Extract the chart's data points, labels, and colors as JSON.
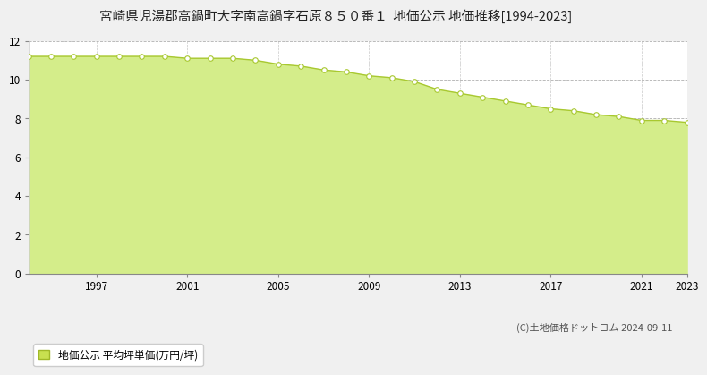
{
  "title": "宮崎県児湯郡高鍋町大字南高鍋字石原８５０番１  地価公示 地価推移[1994-2023]",
  "years": [
    1994,
    1995,
    1996,
    1997,
    1998,
    1999,
    2000,
    2001,
    2002,
    2003,
    2004,
    2005,
    2006,
    2007,
    2008,
    2009,
    2010,
    2011,
    2012,
    2013,
    2014,
    2015,
    2016,
    2017,
    2018,
    2019,
    2020,
    2021,
    2022,
    2023
  ],
  "values": [
    11.2,
    11.2,
    11.2,
    11.2,
    11.2,
    11.2,
    11.2,
    11.1,
    11.1,
    11.1,
    11.0,
    10.8,
    10.7,
    10.5,
    10.4,
    10.2,
    10.1,
    9.9,
    9.5,
    9.3,
    9.1,
    8.9,
    8.7,
    8.5,
    8.4,
    8.2,
    8.1,
    7.9,
    7.9,
    7.8
  ],
  "fill_color": "#d4ed8a",
  "line_color": "#a8c830",
  "marker_facecolor": "#ffffff",
  "marker_edgecolor": "#a8c830",
  "ylim": [
    0,
    12
  ],
  "yticks": [
    0,
    2,
    4,
    6,
    8,
    10,
    12
  ],
  "xticks": [
    1997,
    2001,
    2005,
    2009,
    2013,
    2017,
    2021,
    2023
  ],
  "grid_color_h": "#b0b0b0",
  "grid_color_v": "#c8c8c8",
  "bg_color": "#f0f0f0",
  "plot_bg_color": "#ffffff",
  "legend_label": "地価公示 平均坪単価(万円/坪)",
  "legend_facecolor": "#c8e050",
  "legend_edgecolor": "#a0b828",
  "copyright_text": "(C)土地価格ドットコム 2024-09-11",
  "title_fontsize": 10.5,
  "axis_fontsize": 8.5,
  "legend_fontsize": 8.5,
  "copyright_fontsize": 8
}
